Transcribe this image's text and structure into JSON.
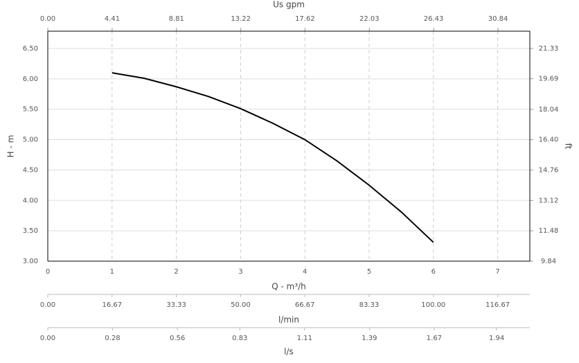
{
  "chart_data": {
    "type": "line",
    "x_label": "Q - m³/h",
    "y_label": "H - m",
    "y2_label": "ft",
    "x": [
      1,
      1.5,
      2,
      2.5,
      3,
      3.5,
      4,
      4.5,
      5,
      5.5,
      6
    ],
    "values": [
      6.1,
      6.01,
      5.87,
      5.71,
      5.51,
      5.27,
      5.0,
      4.65,
      4.25,
      3.81,
      3.31
    ],
    "color": "#000000",
    "xlim": [
      0,
      7.5
    ],
    "xticks": [
      0,
      1,
      2,
      3,
      4,
      5,
      6,
      7
    ],
    "ylim": [
      3,
      6.785
    ],
    "yticks": [
      {
        "value": 3,
        "label": "3.00"
      },
      {
        "value": 3.5,
        "label": "3.50"
      },
      {
        "value": 4,
        "label": "4.00"
      },
      {
        "value": 4.5,
        "label": "4.50"
      },
      {
        "value": 5,
        "label": "5.00"
      },
      {
        "value": 5.5,
        "label": "5.50"
      },
      {
        "value": 6,
        "label": "6.00"
      },
      {
        "value": 6.5,
        "label": "6.50"
      }
    ],
    "y2lim": [
      9.84,
      22.26
    ],
    "y2ticks": [
      9.84,
      11.48,
      13.12,
      14.76,
      {
        "value": 16.4,
        "label": "16.40"
      },
      18.04,
      19.69,
      21.33
    ],
    "grid": true,
    "top_axis": {
      "label": "Us gpm",
      "xlim": [
        0,
        33.02
      ],
      "xticks": [
        {
          "value": 0,
          "label": "0.00"
        },
        4.41,
        8.81,
        13.22,
        17.62,
        22.03,
        26.43,
        30.84
      ]
    },
    "extra_axes": [
      {
        "label": "l/min",
        "xlim": [
          0,
          125
        ],
        "xticks": [
          {
            "value": 0,
            "label": "0.00"
          },
          16.67,
          33.33,
          {
            "value": 50,
            "label": "50.00"
          },
          66.67,
          83.33,
          {
            "value": 100,
            "label": "100.00"
          },
          116.67
        ]
      },
      {
        "label": "l/s",
        "xlim": [
          0,
          2.0833
        ],
        "xticks": [
          {
            "value": 0,
            "label": "0.00"
          },
          0.28,
          0.56,
          0.83,
          1.11,
          1.39,
          1.67,
          1.94
        ]
      }
    ]
  }
}
